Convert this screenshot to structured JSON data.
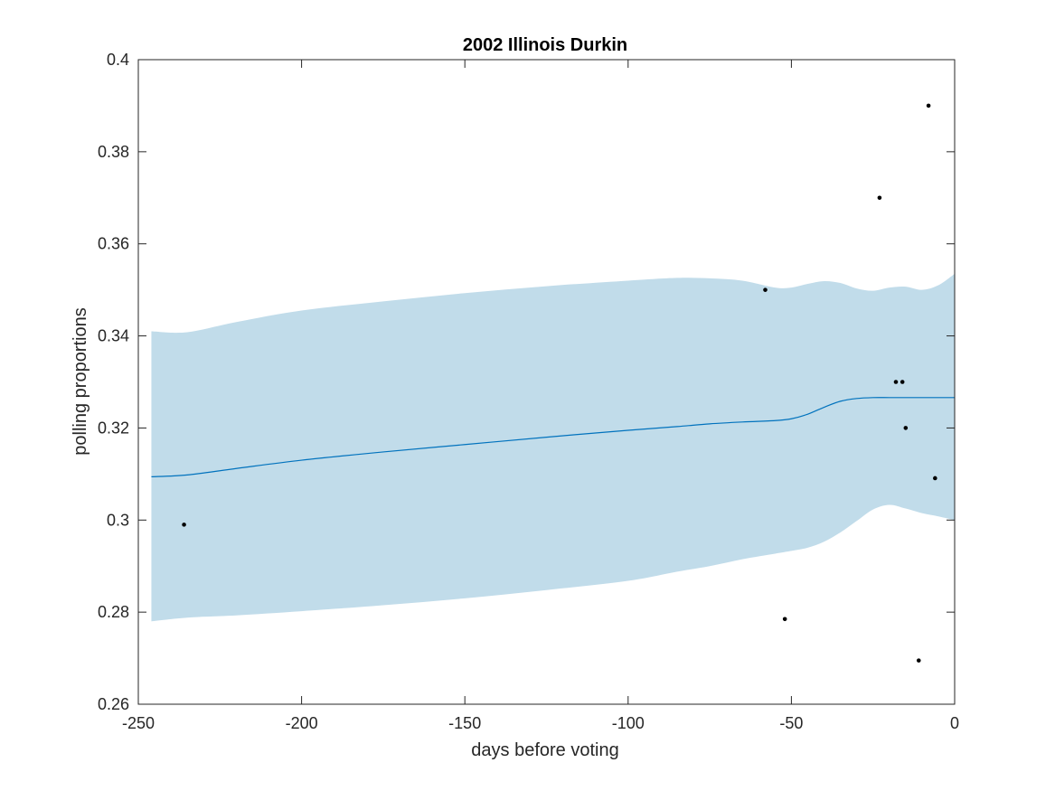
{
  "chart_data": {
    "type": "line",
    "title": "2002 Illinois Durkin",
    "xlabel": "days before voting",
    "ylabel": "polling proportions",
    "xlim": [
      -250,
      0
    ],
    "ylim": [
      0.26,
      0.4
    ],
    "xticks": [
      -250,
      -200,
      -150,
      -100,
      -50,
      0
    ],
    "xtick_labels": [
      "-250",
      "-200",
      "-150",
      "-100",
      "-50",
      "0"
    ],
    "yticks": [
      0.26,
      0.28,
      0.3,
      0.32,
      0.34,
      0.36,
      0.38,
      0.4
    ],
    "ytick_labels": [
      "0.26",
      "0.28",
      "0.3",
      "0.32",
      "0.34",
      "0.36",
      "0.38",
      "0.4"
    ],
    "grid": false,
    "box": true,
    "colors": {
      "band": "#c1dcea",
      "trend": "#0072bd",
      "points": "#000000",
      "axes": "#262626"
    },
    "band": {
      "x": [
        -246,
        -235,
        -220,
        -200,
        -175,
        -150,
        -125,
        -100,
        -85,
        -75,
        -65,
        -55,
        -50,
        -45,
        -40,
        -35,
        -30,
        -25,
        -20,
        -15,
        -10,
        -5,
        0
      ],
      "upper": [
        0.341,
        0.3408,
        0.343,
        0.3455,
        0.3475,
        0.3493,
        0.3508,
        0.352,
        0.3526,
        0.3525,
        0.352,
        0.3505,
        0.3505,
        0.3513,
        0.3519,
        0.3515,
        0.3503,
        0.3498,
        0.3505,
        0.3507,
        0.35,
        0.351,
        0.3535
      ],
      "lower": [
        0.278,
        0.2788,
        0.2793,
        0.2802,
        0.2815,
        0.283,
        0.2848,
        0.2868,
        0.2888,
        0.29,
        0.2915,
        0.2927,
        0.2933,
        0.294,
        0.2953,
        0.2973,
        0.2998,
        0.3023,
        0.3033,
        0.3025,
        0.3015,
        0.3008,
        0.3
      ]
    },
    "series": [
      {
        "x": [
          -246,
          -235,
          -220,
          -200,
          -175,
          -150,
          -125,
          -100,
          -85,
          -75,
          -65,
          -55,
          -50,
          -45,
          -40,
          -35,
          -30,
          -25,
          -20,
          -15,
          -10,
          -5,
          0
        ],
        "values": [
          0.3094,
          0.3098,
          0.3112,
          0.313,
          0.3148,
          0.3164,
          0.318,
          0.3195,
          0.3203,
          0.3209,
          0.3213,
          0.3216,
          0.322,
          0.323,
          0.3245,
          0.3258,
          0.3264,
          0.3266,
          0.3266,
          0.3266,
          0.3266,
          0.3266,
          0.3266
        ]
      }
    ],
    "points": {
      "x": [
        -236,
        -58,
        -52,
        -23,
        -18,
        -16,
        -15,
        -11,
        -8,
        -6
      ],
      "y": [
        0.299,
        0.35,
        0.2785,
        0.37,
        0.33,
        0.33,
        0.32,
        0.2695,
        0.39,
        0.3091
      ]
    }
  }
}
